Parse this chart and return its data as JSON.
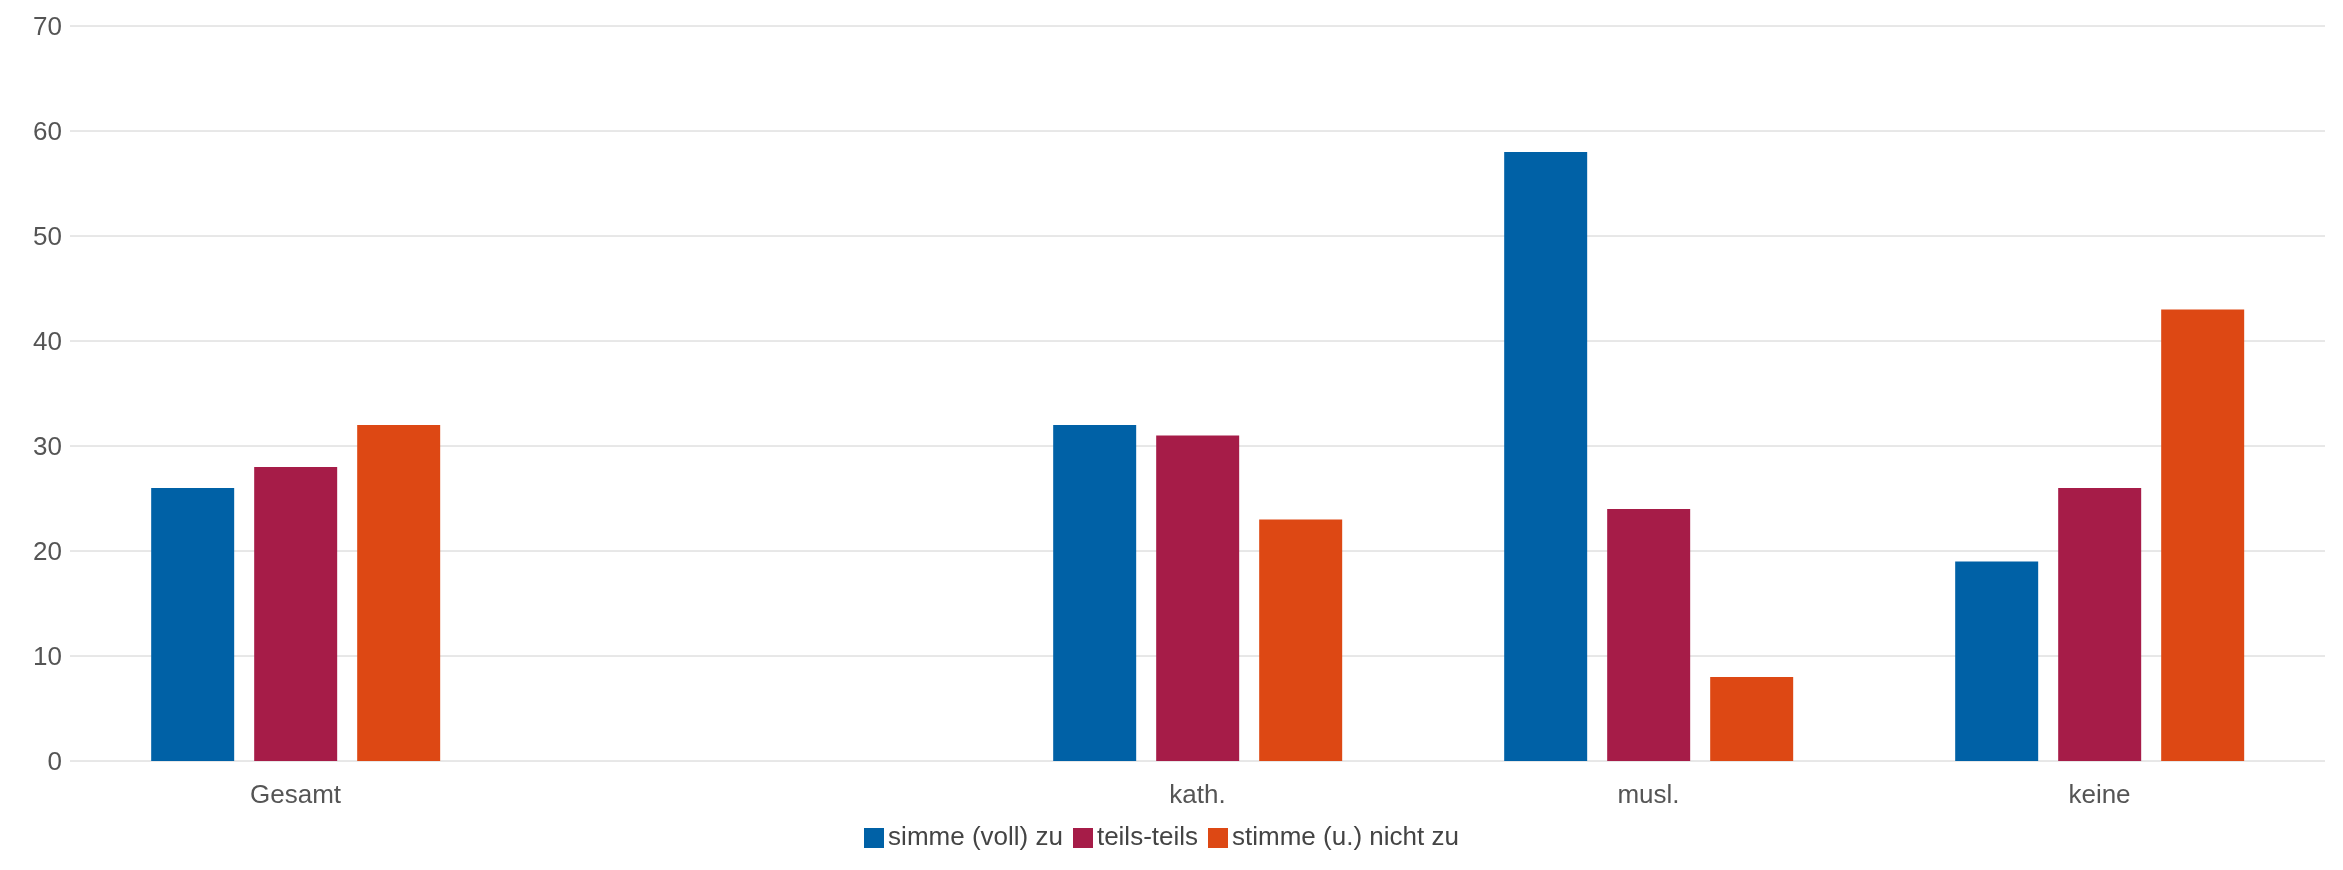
{
  "chart_data": {
    "type": "bar",
    "categories": [
      "Gesamt",
      null,
      "kath.",
      "musl.",
      "keine"
    ],
    "series": [
      {
        "name": "simme (voll) zu",
        "color": "#0061a6",
        "values": [
          26,
          null,
          32,
          58,
          19
        ]
      },
      {
        "name": "teils-teils",
        "color": "#a61c48",
        "values": [
          28,
          null,
          31,
          24,
          26
        ]
      },
      {
        "name": "stimme (u.) nicht zu",
        "color": "#dd4814",
        "values": [
          32,
          null,
          23,
          8,
          43
        ]
      }
    ],
    "ylim": [
      0,
      70
    ],
    "yticks": [
      0,
      10,
      20,
      30,
      40,
      50,
      60,
      70
    ],
    "grid": "y",
    "legend": "bottom"
  }
}
